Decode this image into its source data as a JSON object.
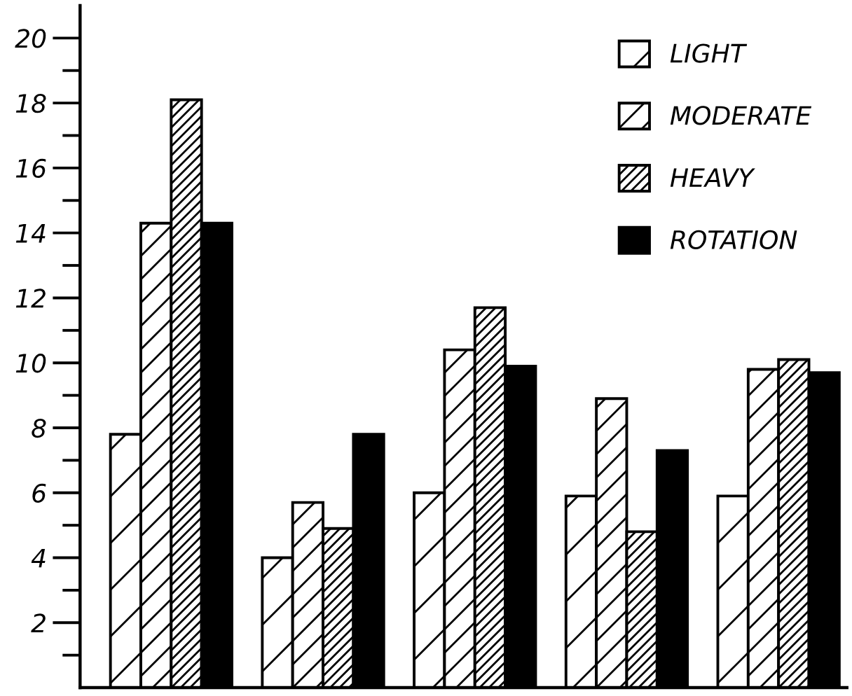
{
  "chart_data": {
    "type": "bar",
    "categories": [
      null,
      null,
      null,
      null,
      null
    ],
    "series": [
      {
        "name": "LIGHT",
        "color": "#000000",
        "values": [
          7.8,
          4.0,
          6.0,
          5.9,
          5.9
        ]
      },
      {
        "name": "MODERATE",
        "color": "#000000",
        "values": [
          14.3,
          5.7,
          10.4,
          8.9,
          9.8
        ]
      },
      {
        "name": "HEAVY",
        "color": "#000000",
        "values": [
          18.1,
          4.9,
          11.7,
          4.8,
          10.1
        ]
      },
      {
        "name": "ROTATION",
        "color": "#000000",
        "values": [
          14.3,
          7.8,
          9.9,
          7.3,
          9.7
        ]
      }
    ],
    "ylim": [
      0,
      21
    ],
    "yticks": [
      {
        "value": 1,
        "label": null
      },
      2,
      {
        "value": 3,
        "label": null
      },
      4,
      {
        "value": 5,
        "label": null
      },
      6,
      {
        "value": 7,
        "label": null
      },
      8,
      {
        "value": 9,
        "label": null
      },
      10,
      {
        "value": 11,
        "label": null
      },
      12,
      {
        "value": 13,
        "label": null
      },
      14,
      {
        "value": 15,
        "label": null
      },
      16,
      {
        "value": 17,
        "label": null
      },
      18,
      {
        "value": 19,
        "label": null
      },
      20
    ],
    "tick_labels": "y",
    "legend": "top right",
    "grid": false
  }
}
